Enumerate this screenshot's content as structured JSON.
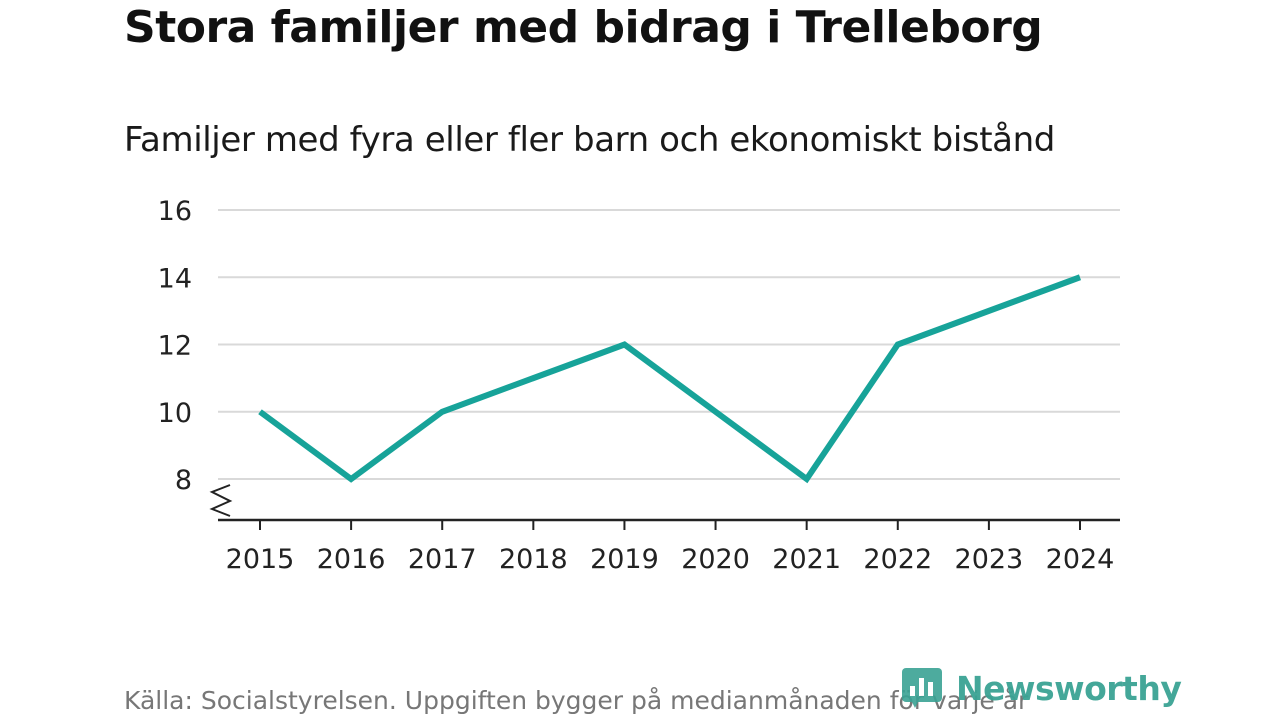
{
  "header": {
    "title": "Stora familjer med bidrag i Trelleborg",
    "subtitle": "Familjer med fyra eller fler barn och ekonomiskt bistånd"
  },
  "chart_data": {
    "type": "line",
    "title": "Stora familjer med bidrag i Trelleborg",
    "subtitle": "Familjer med fyra eller fler barn och ekonomiskt bistånd",
    "xlabel": "",
    "ylabel": "",
    "categories": [
      "2015",
      "2016",
      "2017",
      "2018",
      "2019",
      "2020",
      "2021",
      "2022",
      "2023",
      "2024"
    ],
    "series": [
      {
        "name": "Familjer med fyra eller fler barn och ekonomiskt bistånd",
        "values": [
          10,
          8,
          10,
          11,
          12,
          10,
          8,
          12,
          13,
          14
        ]
      }
    ],
    "yticks": [
      8,
      10,
      12,
      14,
      16
    ],
    "ylim": [
      7,
      16
    ],
    "grid": true,
    "axis_break": true,
    "color": "#17a399"
  },
  "footer": {
    "source": "Källa: Socialstyrelsen. Uppgiften bygger på medianmånaden för varje år",
    "brand": "Newsworthy",
    "brand_color": "#3aa394"
  }
}
